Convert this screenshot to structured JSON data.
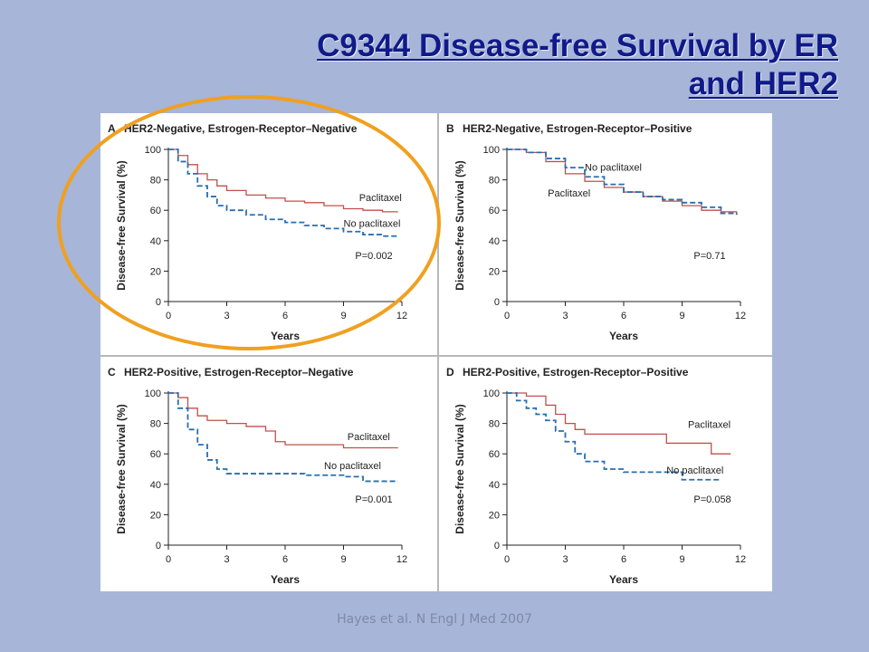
{
  "slide": {
    "title_line1": "C9344 Disease-free Survival by ER",
    "title_line2": "and HER2",
    "citation": "Hayes et al. N Engl J Med 2007"
  },
  "colors": {
    "background": "#a7b5d8",
    "title": "#101a8a",
    "paclitaxel": "#c0504d",
    "no_paclitaxel": "#2a6db0",
    "highlight": "#f0a020"
  },
  "chart_data": [
    {
      "panel": "A",
      "title": "HER2-Negative, Estrogen-Receptor–Negative",
      "type": "line",
      "step": true,
      "xlabel": "Years",
      "ylabel": "Disease-free Survival (%)",
      "xticks": [
        0,
        3,
        6,
        9,
        12
      ],
      "yticks": [
        0,
        20,
        40,
        60,
        80,
        100
      ],
      "xlim": [
        0,
        12
      ],
      "ylim": [
        0,
        100
      ],
      "pvalue": "P=0.002",
      "highlighted": true,
      "series": [
        {
          "name": "Paclitaxel",
          "color": "#c0504d",
          "dash": false,
          "x": [
            0,
            0.5,
            1,
            1.5,
            2,
            2.5,
            3,
            4,
            5,
            6,
            7,
            8,
            9,
            10,
            11,
            11.8
          ],
          "y": [
            100,
            96,
            90,
            84,
            80,
            76,
            73,
            70,
            68,
            66,
            65,
            63,
            61,
            60,
            59,
            59
          ]
        },
        {
          "name": "No paclitaxel",
          "color": "#2a6db0",
          "dash": true,
          "x": [
            0,
            0.5,
            1,
            1.5,
            2,
            2.5,
            3,
            4,
            5,
            6,
            7,
            8,
            9,
            10,
            11,
            11.8
          ],
          "y": [
            100,
            92,
            84,
            76,
            69,
            63,
            60,
            57,
            54,
            52,
            50,
            48,
            46,
            44,
            43,
            43
          ]
        }
      ],
      "labels": [
        {
          "text": "Paclitaxel",
          "x": 9.8,
          "y": 66
        },
        {
          "text": "No paclitaxel",
          "x": 9.0,
          "y": 49
        }
      ]
    },
    {
      "panel": "B",
      "title": "HER2-Negative, Estrogen-Receptor–Positive",
      "type": "line",
      "step": true,
      "xlabel": "Years",
      "ylabel": "Disease-free Survival (%)",
      "xticks": [
        0,
        3,
        6,
        9,
        12
      ],
      "yticks": [
        0,
        20,
        40,
        60,
        80,
        100
      ],
      "xlim": [
        0,
        12
      ],
      "ylim": [
        0,
        100
      ],
      "pvalue": "P=0.71",
      "highlighted": false,
      "series": [
        {
          "name": "Paclitaxel",
          "color": "#c0504d",
          "dash": false,
          "x": [
            0,
            1,
            2,
            3,
            4,
            5,
            6,
            7,
            8,
            9,
            10,
            11,
            11.8
          ],
          "y": [
            100,
            98,
            92,
            84,
            79,
            75,
            72,
            69,
            66,
            63,
            60,
            59,
            58
          ]
        },
        {
          "name": "No paclitaxel",
          "color": "#2a6db0",
          "dash": true,
          "x": [
            0,
            1,
            2,
            3,
            4,
            5,
            6,
            7,
            8,
            9,
            10,
            11,
            11.8
          ],
          "y": [
            100,
            98,
            94,
            88,
            82,
            77,
            72,
            69,
            67,
            65,
            62,
            58,
            57
          ]
        }
      ],
      "labels": [
        {
          "text": "No paclitaxel",
          "x": 4.0,
          "y": 86
        },
        {
          "text": "Paclitaxel",
          "x": 2.1,
          "y": 69
        }
      ]
    },
    {
      "panel": "C",
      "title": "HER2-Positive, Estrogen-Receptor–Negative",
      "type": "line",
      "step": true,
      "xlabel": "Years",
      "ylabel": "Disease-free Survival (%)",
      "xticks": [
        0,
        3,
        6,
        9,
        12
      ],
      "yticks": [
        0,
        20,
        40,
        60,
        80,
        100
      ],
      "xlim": [
        0,
        12
      ],
      "ylim": [
        0,
        100
      ],
      "pvalue": "P=0.001",
      "highlighted": false,
      "series": [
        {
          "name": "Paclitaxel",
          "color": "#c0504d",
          "dash": false,
          "x": [
            0,
            0.5,
            1,
            1.5,
            2,
            3,
            4,
            5,
            5.5,
            6,
            7,
            8,
            9,
            10,
            11,
            11.8
          ],
          "y": [
            100,
            97,
            90,
            85,
            82,
            80,
            78,
            75,
            68,
            66,
            66,
            66,
            64,
            64,
            64,
            64
          ]
        },
        {
          "name": "No paclitaxel",
          "color": "#2a6db0",
          "dash": true,
          "x": [
            0,
            0.5,
            1,
            1.5,
            2,
            2.5,
            3,
            4,
            5,
            6,
            7,
            8,
            9,
            10,
            11,
            11.8
          ],
          "y": [
            100,
            90,
            76,
            66,
            56,
            50,
            47,
            47,
            47,
            47,
            46,
            46,
            45,
            42,
            42,
            42
          ]
        }
      ],
      "labels": [
        {
          "text": "Paclitaxel",
          "x": 9.2,
          "y": 69
        },
        {
          "text": "No paclitaxel",
          "x": 8.0,
          "y": 50
        }
      ]
    },
    {
      "panel": "D",
      "title": "HER2-Positive, Estrogen-Receptor–Positive",
      "type": "line",
      "step": true,
      "xlabel": "Years",
      "ylabel": "Disease-free Survival (%)",
      "xticks": [
        0,
        3,
        6,
        9,
        12
      ],
      "yticks": [
        0,
        20,
        40,
        60,
        80,
        100
      ],
      "xlim": [
        0,
        12
      ],
      "ylim": [
        0,
        100
      ],
      "pvalue": "P=0.058",
      "highlighted": false,
      "series": [
        {
          "name": "Paclitaxel",
          "color": "#c0504d",
          "dash": false,
          "x": [
            0,
            1,
            2,
            2.5,
            3,
            3.5,
            4,
            6,
            8,
            8.2,
            10,
            10.5,
            11.5
          ],
          "y": [
            100,
            98,
            92,
            86,
            80,
            76,
            73,
            73,
            73,
            67,
            67,
            60,
            60
          ]
        },
        {
          "name": "No paclitaxel",
          "color": "#2a6db0",
          "dash": true,
          "x": [
            0,
            0.5,
            1,
            1.5,
            2,
            2.5,
            3,
            3.5,
            4,
            5,
            6,
            8,
            9,
            10,
            11
          ],
          "y": [
            100,
            95,
            90,
            86,
            82,
            75,
            68,
            60,
            55,
            50,
            48,
            48,
            43,
            43,
            43
          ]
        }
      ],
      "labels": [
        {
          "text": "Paclitaxel",
          "x": 9.3,
          "y": 77
        },
        {
          "text": "No paclitaxel",
          "x": 8.2,
          "y": 47
        }
      ]
    }
  ]
}
